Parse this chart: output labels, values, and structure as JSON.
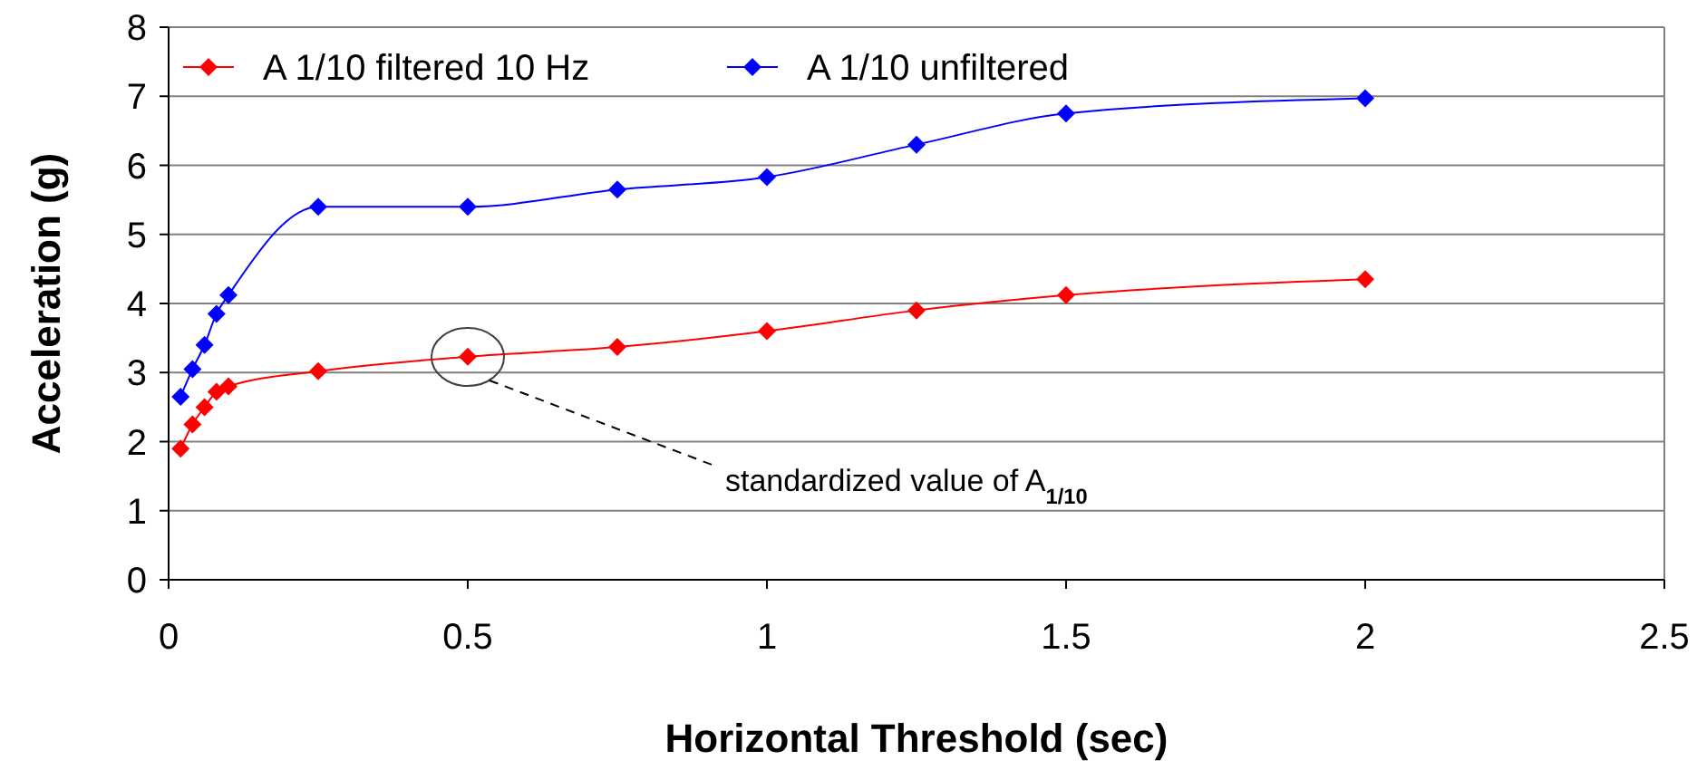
{
  "chart_data": {
    "type": "line",
    "xlabel": "Horizontal Threshold (sec)",
    "ylabel": "Acceleration (g)",
    "xlim": [
      0,
      2.5
    ],
    "xticks": [
      0,
      0.5,
      1,
      1.5,
      2,
      2.5
    ],
    "ylim": [
      0,
      8
    ],
    "yticks": [
      0,
      1,
      2,
      3,
      4,
      5,
      6,
      7,
      8
    ],
    "grid": "y",
    "legend": "top",
    "marker": "diamond",
    "line_style": "solid",
    "series": [
      {
        "name": "A 1/10 filtered 10 Hz",
        "color": "#ff0000",
        "x": [
          0.02,
          0.04,
          0.06,
          0.08,
          0.1,
          0.25,
          0.5,
          0.75,
          1,
          1.25,
          1.5,
          2
        ],
        "values": [
          1.9,
          2.25,
          2.5,
          2.72,
          2.8,
          3.02,
          3.23,
          3.37,
          3.6,
          3.9,
          4.12,
          4.35
        ]
      },
      {
        "name": "A 1/10 unfiltered",
        "color": "#0000ff",
        "x": [
          0.02,
          0.04,
          0.06,
          0.08,
          0.1,
          0.25,
          0.5,
          0.75,
          1,
          1.25,
          1.5,
          2
        ],
        "values": [
          2.65,
          3.05,
          3.4,
          3.85,
          4.12,
          5.4,
          5.4,
          5.65,
          5.83,
          6.3,
          6.75,
          6.97
        ]
      }
    ],
    "annotations": [
      "standardized value of A$_{1/10}$"
    ]
  }
}
